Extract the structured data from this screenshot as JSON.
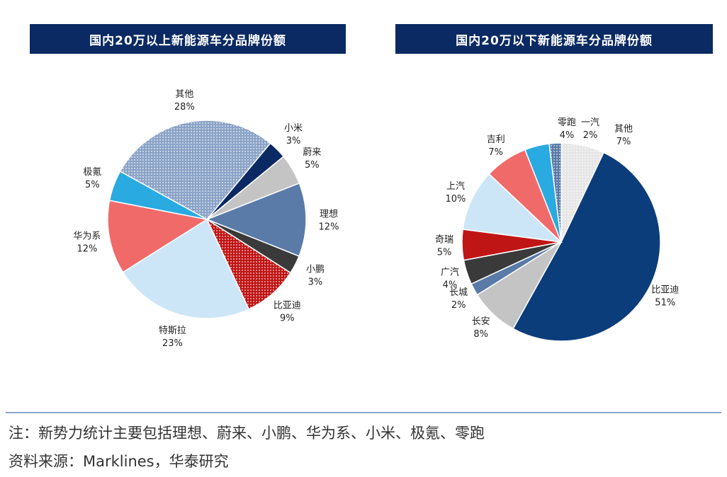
{
  "chart_data": [
    {
      "type": "pie",
      "title": "国内20万以上新能源车分品牌份额",
      "slices": [
        {
          "label": "其他",
          "value": 28,
          "display": "28%",
          "color": "#8aa3c7",
          "pattern": "dots"
        },
        {
          "label": "小米",
          "value": 3,
          "display": "3%",
          "color": "#0b2a63"
        },
        {
          "label": "蔚来",
          "value": 5,
          "display": "5%",
          "color": "#c4c4c4"
        },
        {
          "label": "理想",
          "value": 12,
          "display": "12%",
          "color": "#5a7ba8"
        },
        {
          "label": "小鹏",
          "value": 3,
          "display": "3%",
          "color": "#3a3a3a"
        },
        {
          "label": "比亚迪",
          "value": 9,
          "display": "9%",
          "color": "#c01515",
          "pattern": "dots"
        },
        {
          "label": "特斯拉",
          "value": 23,
          "display": "23%",
          "color": "#cde6f7"
        },
        {
          "label": "华为系",
          "value": 12,
          "display": "12%",
          "color": "#f06a6a"
        },
        {
          "label": "极氪",
          "value": 5,
          "display": "5%",
          "color": "#29aae1"
        }
      ]
    },
    {
      "type": "pie",
      "title": "国内20万以下新能源车分品牌份额",
      "slices": [
        {
          "label": "一汽",
          "value": 2,
          "display": "2%",
          "color": "#5a7ba8",
          "pattern": "dots"
        },
        {
          "label": "其他",
          "value": 7,
          "display": "7%",
          "color": "#e6e6e6",
          "pattern": "dots"
        },
        {
          "label": "比亚迪",
          "value": 51,
          "display": "51%",
          "color": "#0b3d7a"
        },
        {
          "label": "长安",
          "value": 8,
          "display": "8%",
          "color": "#c4c4c4"
        },
        {
          "label": "长城",
          "value": 2,
          "display": "2%",
          "color": "#5a7ba8"
        },
        {
          "label": "广汽",
          "value": 4,
          "display": "4%",
          "color": "#3a3a3a"
        },
        {
          "label": "奇瑞",
          "value": 5,
          "display": "5%",
          "color": "#c01515"
        },
        {
          "label": "上汽",
          "value": 10,
          "display": "10%",
          "color": "#cde6f7"
        },
        {
          "label": "吉利",
          "value": 7,
          "display": "7%",
          "color": "#f06a6a"
        },
        {
          "label": "零跑",
          "value": 4,
          "display": "4%",
          "color": "#29aae1"
        }
      ]
    }
  ],
  "footer": {
    "note": "注：新势力统计主要包括理想、蔚来、小鹏、华为系、小米、极氪、零跑",
    "source": "资料来源：Marklines，华泰研究"
  }
}
